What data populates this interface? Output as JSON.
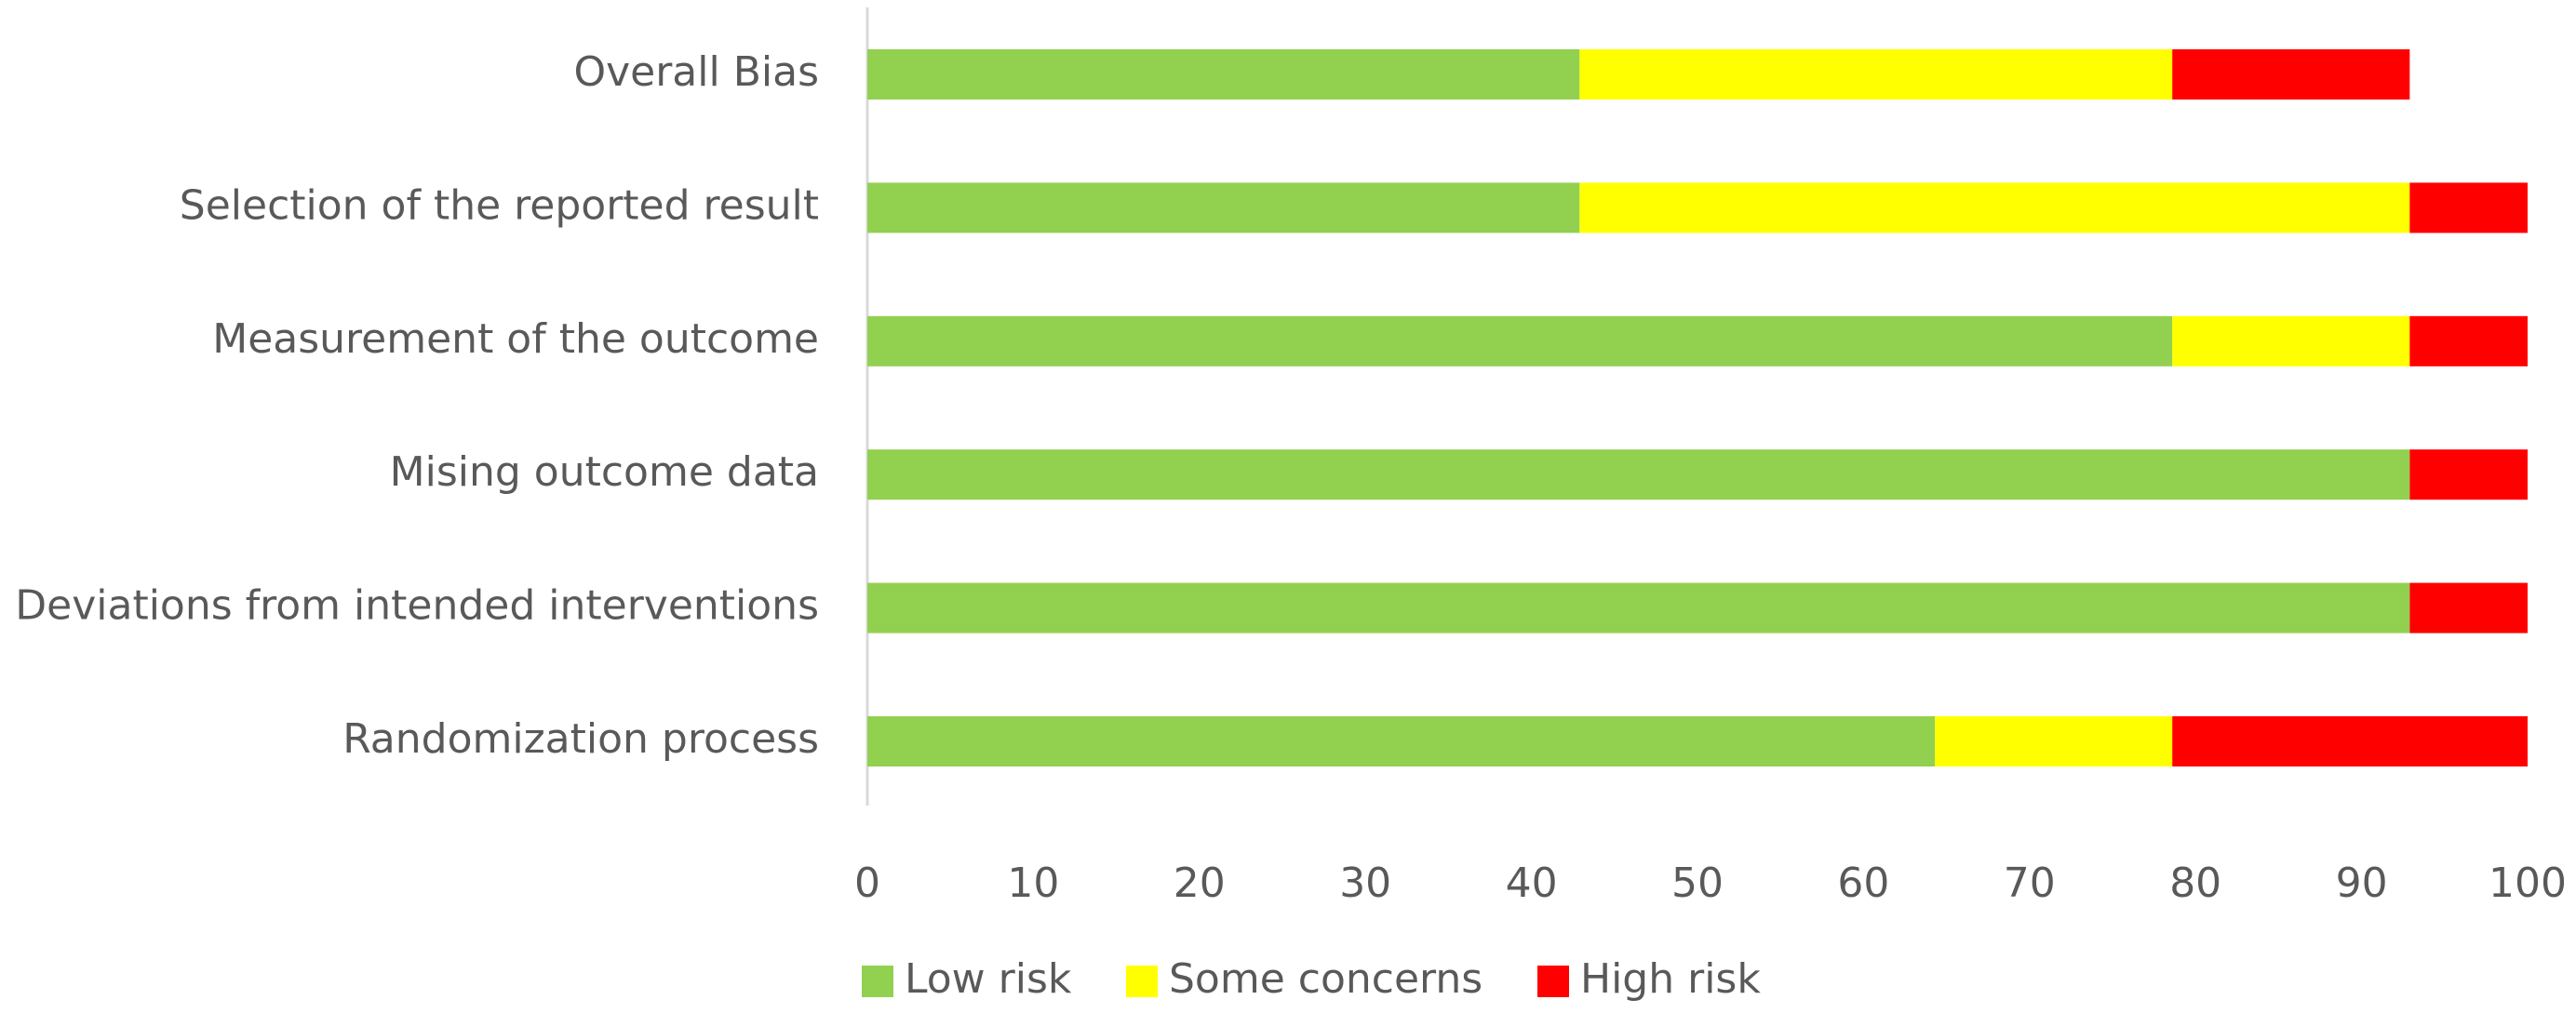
{
  "chart_data": {
    "type": "bar",
    "orientation": "horizontal",
    "stacked": true,
    "title": "",
    "xlabel": "",
    "ylabel": "",
    "xlim": [
      0,
      100
    ],
    "xticks": [
      0,
      10,
      20,
      30,
      40,
      50,
      60,
      70,
      80,
      90,
      100
    ],
    "grid": false,
    "legend_position": "bottom",
    "categories": [
      "Overall Bias",
      "Selection of the reported result",
      "Measurement of the outcome",
      "Mising outcome data",
      "Deviations from intended interventions",
      "Randomization process"
    ],
    "series": [
      {
        "name": "Low risk",
        "color": "#92d050",
        "values": [
          42.9,
          42.9,
          78.6,
          92.9,
          92.9,
          64.3
        ]
      },
      {
        "name": "Some concerns",
        "color": "#ffff00",
        "values": [
          35.7,
          50.0,
          14.3,
          0,
          0,
          14.3
        ]
      },
      {
        "name": "High risk",
        "color": "#ff0000",
        "values": [
          14.3,
          7.1,
          7.1,
          7.1,
          7.1,
          21.4
        ]
      }
    ]
  }
}
